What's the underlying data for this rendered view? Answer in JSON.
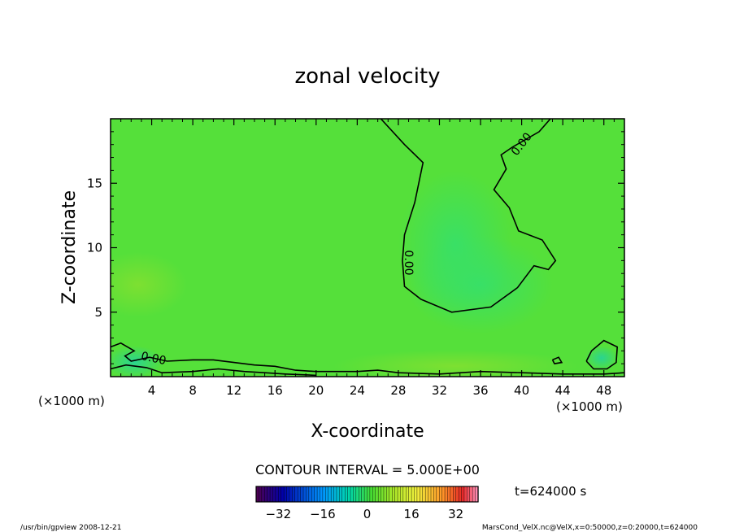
{
  "chart_data": {
    "type": "heatmap",
    "title": "zonal velocity",
    "xlabel": "X-coordinate",
    "ylabel": "Z-coordinate",
    "x_unit_left": "(×1000 m)",
    "x_unit_right": "(×1000 m)",
    "xlim": [
      0,
      50
    ],
    "ylim": [
      0,
      20
    ],
    "x_ticks": [
      4,
      8,
      12,
      16,
      20,
      24,
      28,
      32,
      36,
      40,
      44,
      48
    ],
    "y_ticks": [
      5,
      10,
      15
    ],
    "contour_interval_text": "CONTOUR INTERVAL = 5.000E+00",
    "contour_labels": [
      "0.00",
      "0.00",
      "0.00"
    ],
    "time_text": "t=624000 s",
    "colorbar": {
      "min": -40,
      "max": 40,
      "ticks": [
        -32,
        -16,
        0,
        16,
        32
      ],
      "colormap": "rainbow"
    },
    "field_background_color": "#55e03a",
    "contours": [
      {
        "level": 0,
        "points": [
          [
            26.3,
            20
          ],
          [
            28.6,
            18
          ],
          [
            30.4,
            16.6
          ],
          [
            29.6,
            13.5
          ],
          [
            28.6,
            11
          ],
          [
            28.4,
            9
          ],
          [
            28.6,
            7
          ],
          [
            30.2,
            6
          ],
          [
            33.2,
            5
          ],
          [
            37,
            5.4
          ],
          [
            39.6,
            6.9
          ],
          [
            41.2,
            8.6
          ],
          [
            42.6,
            8.3
          ],
          [
            43.3,
            9
          ],
          [
            42,
            10.6
          ],
          [
            39.7,
            11.3
          ],
          [
            38.8,
            13.1
          ],
          [
            37.3,
            14.5
          ],
          [
            38.5,
            16.1
          ],
          [
            38,
            17.2
          ],
          [
            39.1,
            17.8
          ],
          [
            41.7,
            19
          ],
          [
            42.8,
            20
          ]
        ]
      },
      {
        "level": 0,
        "points": [
          [
            0,
            2.3
          ],
          [
            1,
            2.6
          ],
          [
            2.3,
            2
          ],
          [
            1.4,
            1.6
          ],
          [
            2,
            1.2
          ],
          [
            3.8,
            1.5
          ],
          [
            5.5,
            1.2
          ],
          [
            8,
            1.3
          ],
          [
            10,
            1.3
          ],
          [
            12,
            1.1
          ],
          [
            14,
            0.9
          ],
          [
            16,
            0.8
          ],
          [
            18,
            0.5
          ],
          [
            20,
            0.4
          ],
          [
            24,
            0.4
          ],
          [
            26,
            0.5
          ],
          [
            28,
            0.3
          ],
          [
            32,
            0.2
          ],
          [
            36,
            0.4
          ],
          [
            40,
            0.3
          ],
          [
            44,
            0.2
          ],
          [
            48,
            0.2
          ],
          [
            50,
            0.3
          ]
        ]
      },
      {
        "level": 0,
        "points": [
          [
            0,
            0.6
          ],
          [
            1.5,
            0.9
          ],
          [
            3.5,
            0.7
          ],
          [
            5,
            0.3
          ],
          [
            8,
            0.4
          ],
          [
            10.5,
            0.6
          ],
          [
            13,
            0.4
          ],
          [
            15,
            0.3
          ],
          [
            17,
            0.2
          ],
          [
            20,
            0.1
          ]
        ]
      },
      {
        "level": 0,
        "points": [
          [
            46.3,
            1.2
          ],
          [
            46.8,
            2
          ],
          [
            48,
            2.8
          ],
          [
            49.3,
            2.3
          ],
          [
            49.2,
            1.1
          ],
          [
            48.3,
            0.6
          ],
          [
            47,
            0.6
          ],
          [
            46.3,
            1.2
          ]
        ]
      },
      {
        "level": 0,
        "points": [
          [
            43,
            1.3
          ],
          [
            43.6,
            1.5
          ],
          [
            43.9,
            1.1
          ],
          [
            43.2,
            1
          ],
          [
            43,
            1.3
          ]
        ]
      }
    ]
  },
  "footer": {
    "left_text": "/usr/bin/gpview  2008-12-21",
    "right_text": "MarsCond_VelX.nc@VelX,x=0:50000,z=0:20000,t=624000"
  }
}
